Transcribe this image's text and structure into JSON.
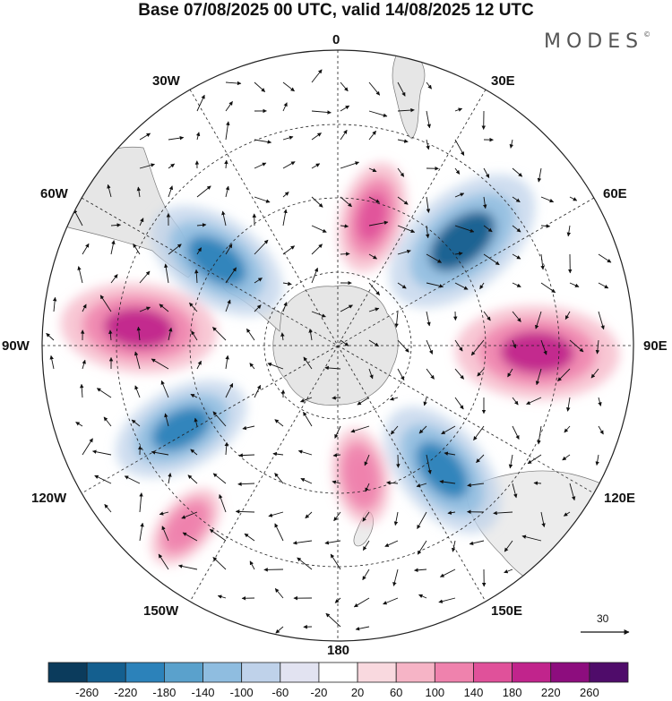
{
  "title": "Base 07/08/2025 00 UTC, valid 14/08/2025 12 UTC",
  "brand": "MODES",
  "brand_mark": "©",
  "longitude_labels": {
    "lon0": "0",
    "lon30e": "30E",
    "lon60e": "60E",
    "lon90e": "90E",
    "lon120e": "120E",
    "lon150e": "150E",
    "lon180": "180",
    "lon150w": "150W",
    "lon120w": "120W",
    "lon90w": "90W",
    "lon60w": "60W",
    "lon30w": "30W"
  },
  "reference_vector": {
    "label": "30"
  },
  "colorbar": {
    "colors": [
      "#0b3b5c",
      "#145f8f",
      "#2c82ba",
      "#5aa1cc",
      "#8fbde0",
      "#bfd2ea",
      "#e2e3f1",
      "#ffffff",
      "#f9d9df",
      "#f6b4c6",
      "#ef82ad",
      "#e0519a",
      "#c1248c",
      "#8d0d7e",
      "#4f0c6a"
    ],
    "ticks": [
      "-260",
      "-220",
      "-180",
      "-140",
      "-100",
      "-60",
      "-20",
      "20",
      "60",
      "100",
      "140",
      "180",
      "220",
      "260"
    ]
  },
  "anomalies": [
    {
      "name": "neg-anomaly-60w",
      "lon": -55,
      "colat": 20,
      "color": "#2c82ba",
      "value": -200
    },
    {
      "name": "pos-anomaly-15e",
      "lon": 15,
      "colat": 18,
      "color": "#e0519a",
      "value": 150
    },
    {
      "name": "neg-anomaly-50e",
      "lon": 50,
      "colat": 22,
      "color": "#145f8f",
      "value": -230
    },
    {
      "name": "pos-anomaly-85w",
      "lon": -85,
      "colat": 27,
      "color": "#c1248c",
      "value": 210
    },
    {
      "name": "pos-anomaly-90e",
      "lon": 92,
      "colat": 27,
      "color": "#c1248c",
      "value": 220
    },
    {
      "name": "neg-anomaly-120w",
      "lon": -118,
      "colat": 24,
      "color": "#2c82ba",
      "value": -190
    },
    {
      "name": "neg-anomaly-140e",
      "lon": 140,
      "colat": 22,
      "color": "#2c82ba",
      "value": -200
    },
    {
      "name": "pos-anomaly-170e",
      "lon": 170,
      "colat": 18,
      "color": "#ef82ad",
      "value": 130
    },
    {
      "name": "pos-anomaly-140w",
      "lon": -140,
      "colat": 32,
      "color": "#ef82ad",
      "value": 120
    }
  ]
}
